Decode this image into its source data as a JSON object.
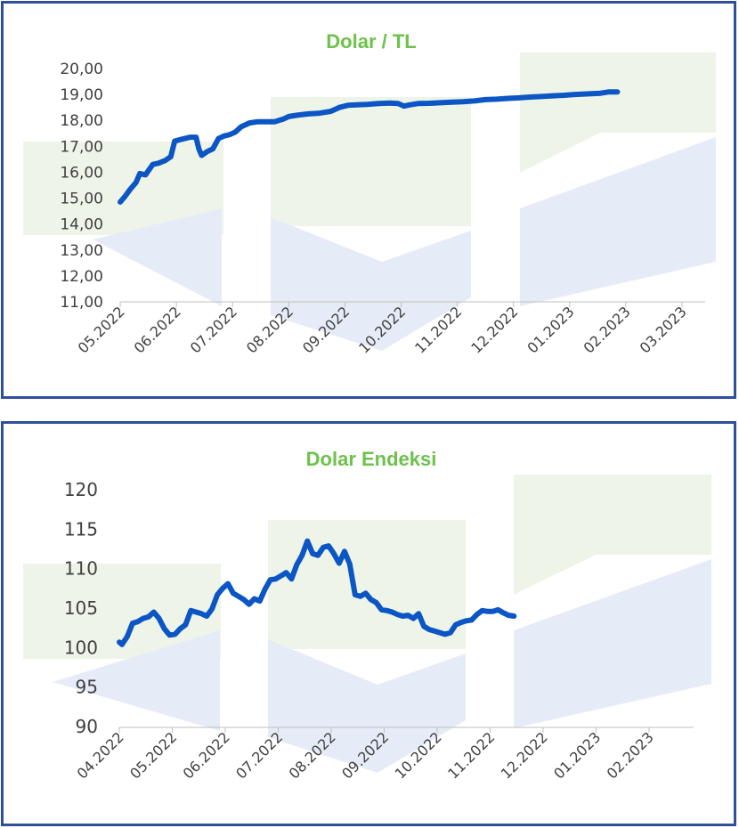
{
  "colors": {
    "border": "#2f4f9a",
    "line": "#0b55c4",
    "title": "#6cc24a",
    "axis": "#bfbfbf",
    "text": "#404040",
    "wm_green": "#eef5e8",
    "wm_blue": "#e6ecf7"
  },
  "chart_data": [
    {
      "type": "line",
      "title": "Dolar / TL",
      "xlabel": "",
      "ylabel": "",
      "ylim": [
        11,
        20
      ],
      "y_ticks": [
        "20,00",
        "19,00",
        "18,00",
        "17,00",
        "16,00",
        "15,00",
        "14,00",
        "13,00",
        "12,00",
        "11,00"
      ],
      "x_ticks": [
        "05.2022",
        "06.2022",
        "07.2022",
        "08.2022",
        "09.2022",
        "10.2022",
        "11.2022",
        "12.2022",
        "01.2023",
        "02.2023",
        "03.2023"
      ],
      "grid": false,
      "series": [
        {
          "values": [
            [
              0.0,
              14.85
            ],
            [
              0.08,
              15.05
            ],
            [
              0.18,
              15.35
            ],
            [
              0.28,
              15.6
            ],
            [
              0.35,
              15.95
            ],
            [
              0.45,
              15.9
            ],
            [
              0.58,
              16.3
            ],
            [
              0.68,
              16.35
            ],
            [
              0.8,
              16.45
            ],
            [
              0.9,
              16.6
            ],
            [
              0.97,
              17.2
            ],
            [
              1.05,
              17.25
            ],
            [
              1.15,
              17.3
            ],
            [
              1.25,
              17.35
            ],
            [
              1.35,
              17.35
            ],
            [
              1.4,
              16.9
            ],
            [
              1.45,
              16.65
            ],
            [
              1.55,
              16.8
            ],
            [
              1.65,
              16.9
            ],
            [
              1.75,
              17.3
            ],
            [
              1.85,
              17.4
            ],
            [
              1.95,
              17.45
            ],
            [
              2.05,
              17.55
            ],
            [
              2.15,
              17.75
            ],
            [
              2.3,
              17.9
            ],
            [
              2.45,
              17.95
            ],
            [
              2.6,
              17.95
            ],
            [
              2.75,
              17.95
            ],
            [
              2.9,
              18.05
            ],
            [
              3.0,
              18.15
            ],
            [
              3.15,
              18.2
            ],
            [
              3.35,
              18.25
            ],
            [
              3.55,
              18.28
            ],
            [
              3.75,
              18.35
            ],
            [
              3.9,
              18.5
            ],
            [
              4.05,
              18.58
            ],
            [
              4.2,
              18.6
            ],
            [
              4.4,
              18.62
            ],
            [
              4.6,
              18.65
            ],
            [
              4.8,
              18.67
            ],
            [
              4.95,
              18.65
            ],
            [
              5.05,
              18.55
            ],
            [
              5.15,
              18.6
            ],
            [
              5.3,
              18.65
            ],
            [
              5.5,
              18.66
            ],
            [
              5.7,
              18.68
            ],
            [
              5.9,
              18.7
            ],
            [
              6.1,
              18.72
            ],
            [
              6.3,
              18.75
            ],
            [
              6.5,
              18.8
            ],
            [
              6.7,
              18.82
            ],
            [
              6.9,
              18.85
            ],
            [
              7.1,
              18.87
            ],
            [
              7.3,
              18.9
            ],
            [
              7.5,
              18.92
            ],
            [
              7.7,
              18.95
            ],
            [
              7.9,
              18.97
            ],
            [
              8.1,
              19.0
            ],
            [
              8.3,
              19.02
            ],
            [
              8.55,
              19.05
            ],
            [
              8.7,
              19.1
            ],
            [
              8.85,
              19.1
            ]
          ]
        }
      ]
    },
    {
      "type": "line",
      "title": "Dolar Endeksi",
      "xlabel": "",
      "ylabel": "",
      "ylim": [
        90,
        120
      ],
      "y_ticks": [
        "120",
        "115",
        "110",
        "105",
        "100",
        "95",
        "90"
      ],
      "x_ticks": [
        "04.2022",
        "05.2022",
        "06.2022",
        "07.2022",
        "08.2022",
        "09.2022",
        "10.2022",
        "11.2022",
        "12.2022",
        "01.2023",
        "02.2023"
      ],
      "grid": false,
      "series": [
        {
          "values": [
            [
              0.0,
              100.8
            ],
            [
              0.05,
              100.5
            ],
            [
              0.15,
              101.5
            ],
            [
              0.25,
              103.2
            ],
            [
              0.35,
              103.4
            ],
            [
              0.45,
              103.8
            ],
            [
              0.55,
              104.0
            ],
            [
              0.65,
              104.6
            ],
            [
              0.75,
              103.8
            ],
            [
              0.85,
              102.5
            ],
            [
              0.95,
              101.7
            ],
            [
              1.05,
              101.8
            ],
            [
              1.15,
              102.5
            ],
            [
              1.25,
              103.0
            ],
            [
              1.35,
              104.8
            ],
            [
              1.45,
              104.6
            ],
            [
              1.55,
              104.4
            ],
            [
              1.65,
              104.1
            ],
            [
              1.75,
              105.0
            ],
            [
              1.85,
              106.8
            ],
            [
              1.95,
              107.6
            ],
            [
              2.05,
              108.2
            ],
            [
              2.15,
              107.0
            ],
            [
              2.25,
              106.6
            ],
            [
              2.35,
              106.2
            ],
            [
              2.45,
              105.6
            ],
            [
              2.55,
              106.3
            ],
            [
              2.65,
              106.0
            ],
            [
              2.75,
              107.5
            ],
            [
              2.85,
              108.7
            ],
            [
              2.95,
              108.8
            ],
            [
              3.05,
              109.2
            ],
            [
              3.15,
              109.6
            ],
            [
              3.25,
              108.8
            ],
            [
              3.35,
              110.6
            ],
            [
              3.45,
              111.8
            ],
            [
              3.55,
              113.6
            ],
            [
              3.65,
              112.0
            ],
            [
              3.75,
              111.8
            ],
            [
              3.85,
              112.8
            ],
            [
              3.95,
              113.0
            ],
            [
              4.05,
              112.0
            ],
            [
              4.15,
              110.8
            ],
            [
              4.25,
              112.3
            ],
            [
              4.35,
              110.7
            ],
            [
              4.45,
              106.8
            ],
            [
              4.55,
              106.6
            ],
            [
              4.65,
              107.0
            ],
            [
              4.75,
              106.2
            ],
            [
              4.85,
              105.8
            ],
            [
              4.95,
              104.9
            ],
            [
              5.05,
              104.8
            ],
            [
              5.15,
              104.6
            ],
            [
              5.25,
              104.3
            ],
            [
              5.35,
              104.1
            ],
            [
              5.45,
              104.2
            ],
            [
              5.55,
              103.8
            ],
            [
              5.65,
              104.4
            ],
            [
              5.75,
              102.8
            ],
            [
              5.85,
              102.4
            ],
            [
              5.95,
              102.2
            ],
            [
              6.05,
              102.0
            ],
            [
              6.15,
              101.8
            ],
            [
              6.25,
              102.0
            ],
            [
              6.35,
              103.0
            ],
            [
              6.45,
              103.3
            ],
            [
              6.55,
              103.5
            ],
            [
              6.65,
              103.6
            ],
            [
              6.75,
              104.3
            ],
            [
              6.85,
              104.8
            ],
            [
              6.95,
              104.7
            ],
            [
              7.05,
              104.7
            ],
            [
              7.15,
              104.9
            ],
            [
              7.25,
              104.5
            ],
            [
              7.35,
              104.2
            ],
            [
              7.45,
              104.1
            ]
          ]
        }
      ]
    }
  ]
}
